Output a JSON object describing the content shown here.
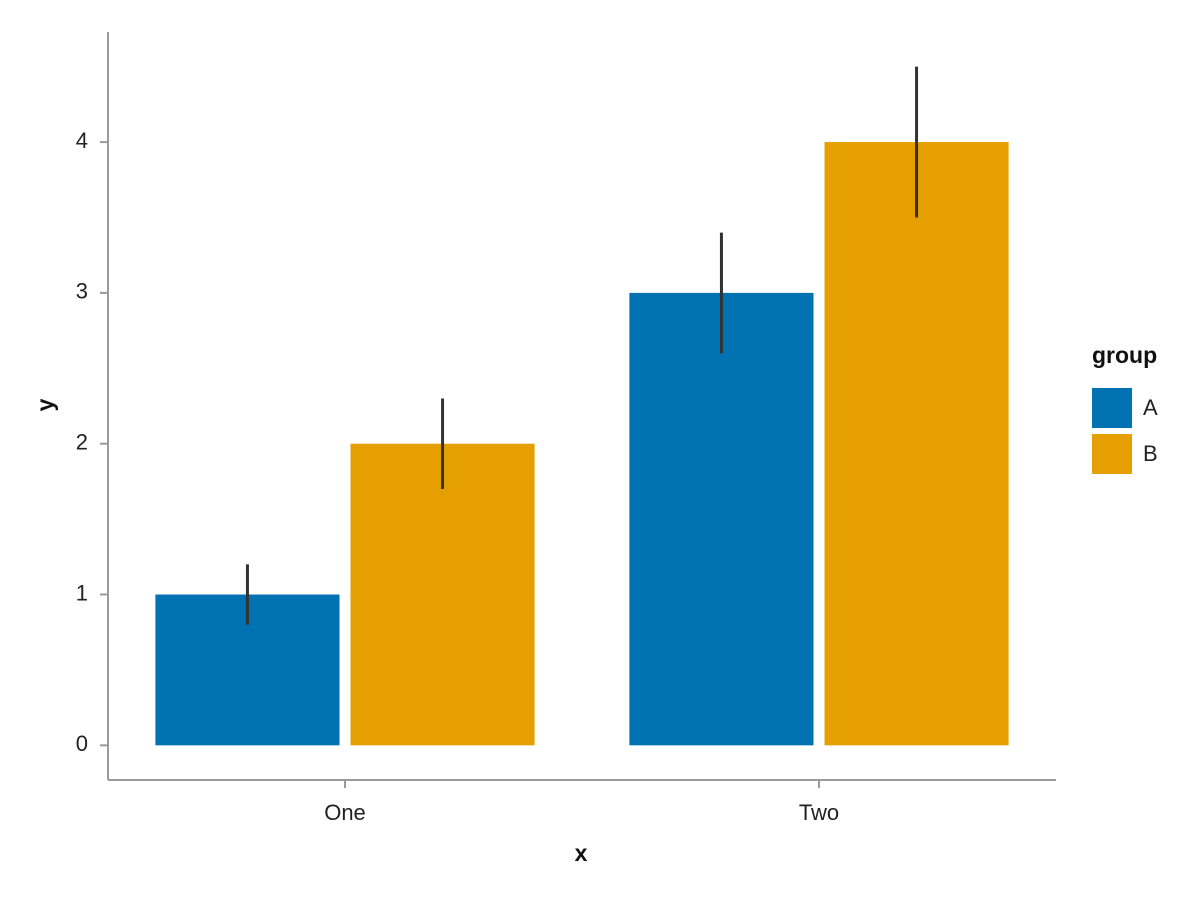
{
  "chart_data": {
    "type": "bar",
    "x_label": "x",
    "y_label": "y",
    "categories": [
      "One",
      "Two"
    ],
    "series": [
      {
        "name": "A",
        "color": "#0072b2",
        "values": [
          1,
          3
        ],
        "errors": [
          0.2,
          0.4
        ]
      },
      {
        "name": "B",
        "color": "#e69f00",
        "values": [
          2,
          4
        ],
        "errors": [
          0.3,
          0.5
        ]
      }
    ],
    "ylim": [
      -0.23,
      4.73
    ],
    "yticks": [
      0,
      1,
      2,
      3,
      4
    ],
    "legend_title": "group",
    "legend_position": "right",
    "grid": false
  }
}
